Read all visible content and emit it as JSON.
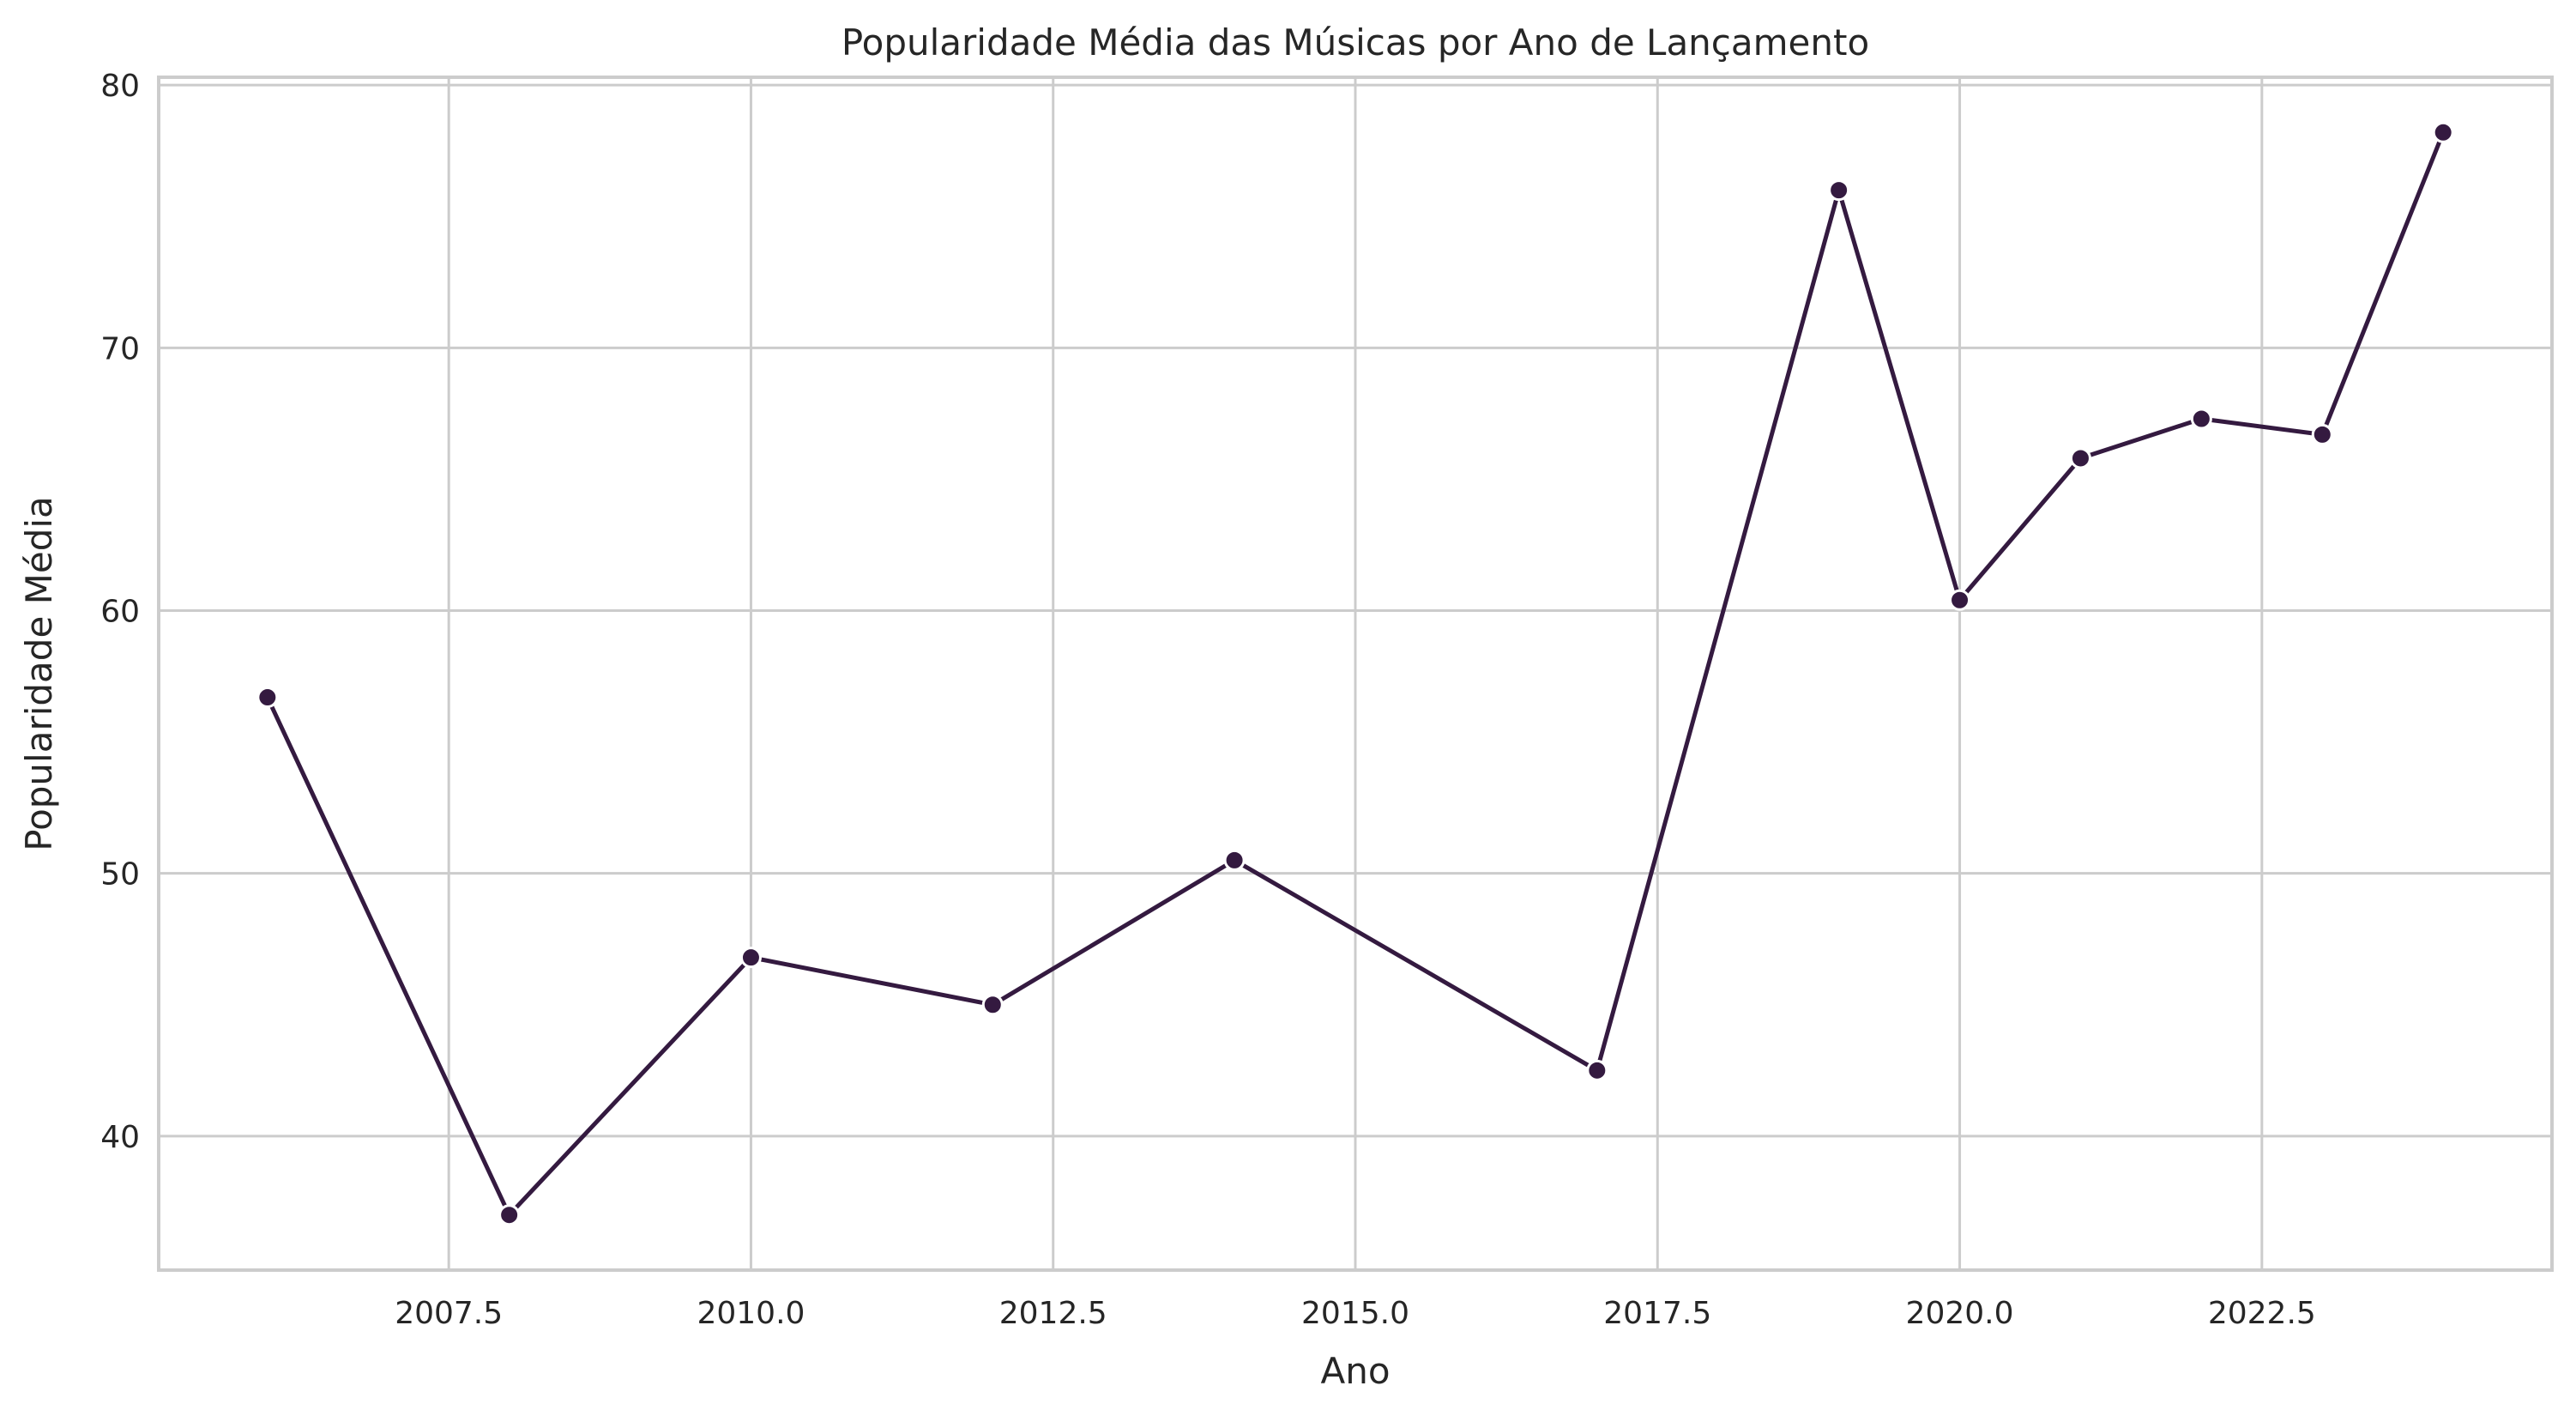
{
  "chart_data": {
    "type": "line",
    "title": "Popularidade Média das Músicas por Ano de Lançamento",
    "xlabel": "Ano",
    "ylabel": "Popularidade Média",
    "xlim": [
      2005.1,
      2024.9
    ],
    "ylim": [
      34.9,
      80.3
    ],
    "xticks": [
      2007.5,
      2010.0,
      2012.5,
      2015.0,
      2017.5,
      2020.0,
      2022.5
    ],
    "xtick_labels": [
      "2007.5",
      "2010.0",
      "2012.5",
      "2015.0",
      "2017.5",
      "2020.0",
      "2022.5"
    ],
    "yticks": [
      40,
      50,
      60,
      70,
      80
    ],
    "ytick_labels": [
      "40",
      "50",
      "60",
      "70",
      "80"
    ],
    "grid": true,
    "color": "#341a40",
    "series": [
      {
        "x": [
          2006,
          2008,
          2010,
          2012,
          2014,
          2017,
          2019,
          2020,
          2021,
          2022,
          2023,
          2024
        ],
        "y": [
          56.7,
          37.0,
          46.8,
          45.0,
          50.5,
          42.5,
          76.0,
          60.4,
          65.8,
          67.3,
          66.7,
          78.2
        ]
      }
    ]
  }
}
